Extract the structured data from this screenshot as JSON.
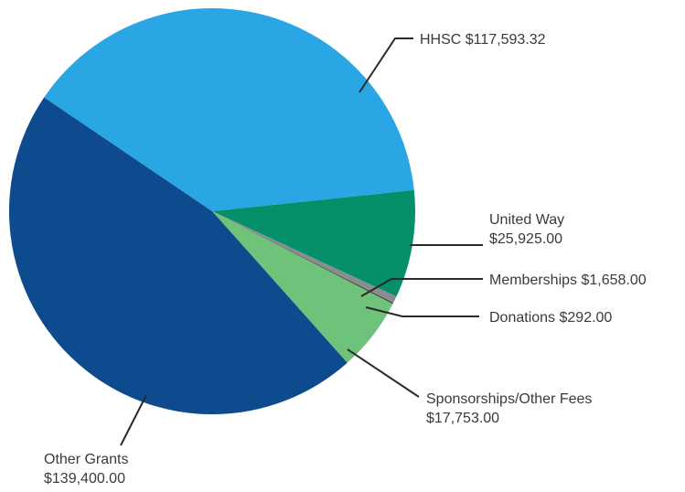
{
  "chart_data": {
    "type": "pie",
    "title": "",
    "start_angle_deg": -6,
    "direction": "clockwise",
    "slices": [
      {
        "label_lines": [
          "United Way",
          "$25,925.00"
        ],
        "value": 25925.0,
        "color": "#06906a"
      },
      {
        "label_lines": [
          "Memberships $1,658.00"
        ],
        "value": 1658.0,
        "color": "#8a8d8f"
      },
      {
        "label_lines": [
          "Donations $292.00"
        ],
        "value": 292.0,
        "color": "#3d3f42"
      },
      {
        "label_lines": [
          "Sponsorships/Other Fees",
          "$17,753.00"
        ],
        "value": 17753.0,
        "color": "#6ec27a"
      },
      {
        "label_lines": [
          "Other Grants",
          "$139,400.00"
        ],
        "value": 139400.0,
        "color": "#0d4b8e"
      },
      {
        "label_lines": [
          "HHSC $117,593.32"
        ],
        "value": 117593.32,
        "color": "#29a6e3"
      }
    ]
  }
}
